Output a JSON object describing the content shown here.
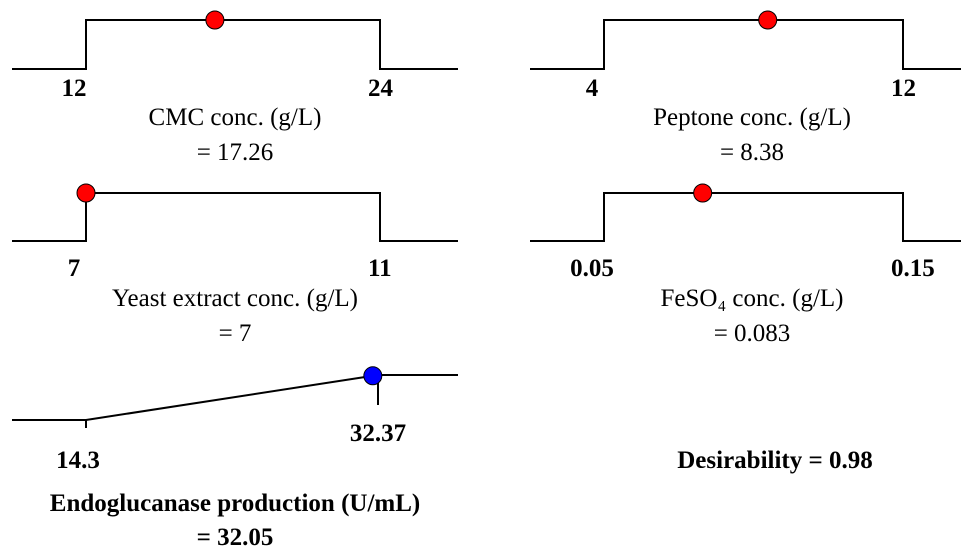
{
  "chart_data": [
    {
      "type": "ramp",
      "title": "CMC conc. (g/L)",
      "xlim": [
        12,
        24
      ],
      "xticks": [
        12,
        24
      ],
      "values": [
        17.26
      ],
      "value_labels": [
        "= 17.26"
      ],
      "color": "#ff0000"
    },
    {
      "type": "ramp",
      "title": "Peptone conc. (g/L)",
      "xlim": [
        4,
        12
      ],
      "xticks": [
        4,
        12
      ],
      "values": [
        8.38
      ],
      "value_labels": [
        "= 8.38"
      ],
      "color": "#ff0000"
    },
    {
      "type": "ramp",
      "title": "Yeast extract conc. (g/L)",
      "xlim": [
        7,
        11
      ],
      "xticks": [
        7,
        11
      ],
      "values": [
        7
      ],
      "value_labels": [
        "= 7"
      ],
      "color": "#ff0000"
    },
    {
      "type": "ramp",
      "title": "FeSO₄ conc. (g/L)",
      "xlim": [
        0.05,
        0.15
      ],
      "xticks": [
        0.05,
        0.15
      ],
      "values": [
        0.083
      ],
      "value_labels": [
        "= 0.083"
      ],
      "color": "#ff0000"
    },
    {
      "type": "response",
      "title": "Endoglucanase production (U/mL)",
      "xlim": [
        14.3,
        32.37
      ],
      "xticks": [
        14.3,
        32.37
      ],
      "values": [
        32.05
      ],
      "value_labels": [
        "= 32.05"
      ],
      "color": "#0000ff"
    }
  ],
  "desirability": "Desirability = 0.98"
}
